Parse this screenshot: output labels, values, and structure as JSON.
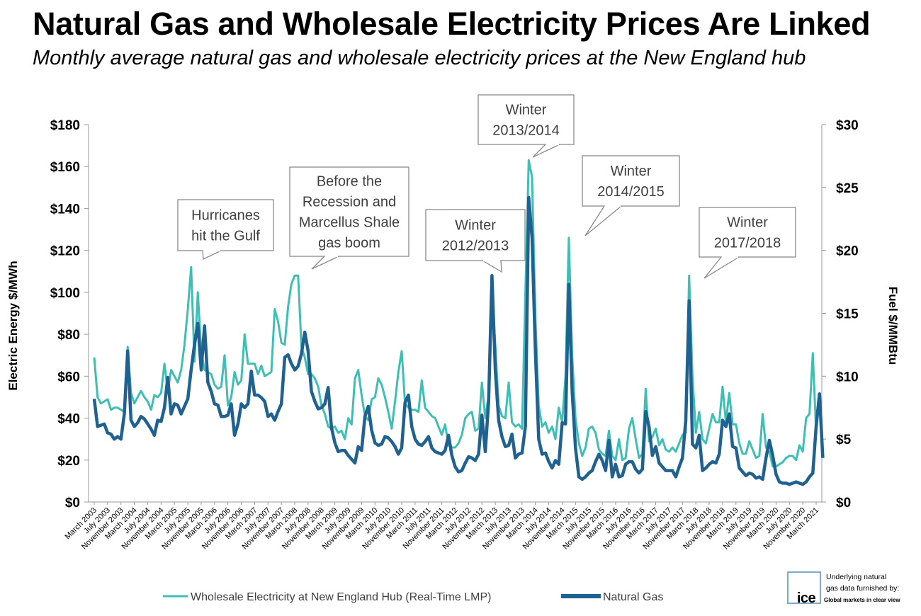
{
  "title": "Natural Gas and Wholesale Electricity Prices Are Linked",
  "subtitle": "Monthly average natural gas and wholesale electricity prices at the New England hub",
  "colors": {
    "electricity": "#3dbfb4",
    "gas": "#1f6291",
    "axis": "#999999"
  },
  "chart_data": {
    "type": "line",
    "ylabel": "Electric  Energy $/MWh",
    "y2label": "Fuel $/MMBtu",
    "ylim": [
      0,
      180
    ],
    "y2lim": [
      0,
      30
    ],
    "yticks": [
      "$0",
      "$20",
      "$40",
      "$60",
      "$80",
      "$100",
      "$120",
      "$140",
      "$160",
      "$180"
    ],
    "y2ticks": [
      "$0",
      "$5",
      "$10",
      "$15",
      "$20",
      "$25",
      "$30"
    ],
    "x_start": "March 2003",
    "x_end": "March 2021",
    "x_tick_labels": [
      "March 2003",
      "July 2003",
      "November 2003",
      "March 2004",
      "July 2004",
      "November 2004",
      "March 2005",
      "July 2005",
      "November 2005",
      "March 2006",
      "July 2006",
      "November 2006",
      "March 2007",
      "July 2007",
      "November 2007",
      "March 2008",
      "July 2008",
      "November 2008",
      "March 2009",
      "July 2009",
      "November 2009",
      "March 2010",
      "July 2010",
      "November 2010",
      "March 2011",
      "July 2011",
      "November 2011",
      "March 2012",
      "July 2012",
      "November 2012",
      "March 2013",
      "July 2013",
      "November 2013",
      "March 2014",
      "July 2014",
      "November 2014",
      "March 2015",
      "July 2015",
      "November 2015",
      "March 2016",
      "July 2016",
      "November 2016",
      "March 2017",
      "July 2017",
      "November 2017",
      "March 2018",
      "July 2018",
      "November 2018",
      "March 2019",
      "July 2019",
      "November 2019",
      "March 2020",
      "July 2020",
      "November 2020",
      "March 2021"
    ],
    "series": [
      {
        "name": "Wholesale Electricity at New England Hub (Real-Time LMP)",
        "axis": "left",
        "values": [
          69,
          50,
          47,
          48,
          49,
          44,
          45,
          45,
          44,
          43,
          74,
          52,
          47,
          50,
          53,
          50,
          48,
          44,
          51,
          50,
          52,
          66,
          53,
          63,
          60,
          57,
          63,
          75,
          92,
          112,
          67,
          100,
          72,
          63,
          62,
          61,
          56,
          54,
          55,
          70,
          46,
          50,
          62,
          56,
          58,
          80,
          66,
          66,
          66,
          61,
          65,
          60,
          61,
          62,
          92,
          86,
          76,
          75,
          93,
          104,
          108,
          108,
          74,
          69,
          61,
          61,
          59,
          55,
          46,
          42,
          36,
          35,
          36,
          33,
          34,
          30,
          40,
          37,
          59,
          63,
          51,
          41,
          39,
          49,
          50,
          59,
          56,
          50,
          43,
          35,
          48,
          62,
          72,
          47,
          45,
          44,
          44,
          43,
          58,
          45,
          43,
          41,
          40,
          36,
          32,
          37,
          27,
          26,
          26,
          28,
          32,
          40,
          42,
          43,
          34,
          35,
          57,
          40,
          51,
          100,
          75,
          46,
          41,
          40,
          57,
          38,
          36,
          37,
          35,
          100,
          163,
          155,
          88,
          46,
          36,
          38,
          33,
          36,
          30,
          45,
          38,
          60,
          126,
          70,
          40,
          28,
          22,
          26,
          35,
          36,
          33,
          25,
          23,
          22,
          34,
          22,
          20,
          30,
          20,
          21,
          35,
          40,
          30,
          21,
          23,
          54,
          29,
          31,
          35,
          27,
          30,
          25,
          24,
          26,
          24,
          28,
          32,
          33,
          108,
          60,
          33,
          43,
          30,
          28,
          35,
          42,
          38,
          38,
          55,
          38,
          52,
          37,
          37,
          28,
          23,
          23,
          29,
          25,
          21,
          22,
          42,
          26,
          24,
          17,
          17,
          18,
          19,
          21,
          22,
          22,
          20,
          27,
          24,
          40,
          42,
          71,
          33
        ]
      },
      {
        "name": "Natural Gas",
        "axis": "right",
        "values": [
          8.2,
          6.0,
          6.1,
          6.2,
          5.5,
          5.4,
          5.0,
          5.2,
          5.0,
          7.0,
          12.0,
          6.5,
          6.0,
          6.3,
          6.8,
          6.6,
          6.2,
          5.8,
          5.3,
          6.5,
          6.4,
          7.5,
          9.9,
          7.0,
          7.8,
          7.7,
          7.0,
          7.6,
          8.2,
          10.5,
          12.5,
          14.2,
          10.5,
          14.0,
          9.5,
          8.8,
          7.8,
          7.7,
          6.8,
          6.8,
          6.9,
          7.8,
          5.3,
          6.2,
          7.8,
          7.5,
          7.8,
          10.4,
          8.5,
          8.5,
          8.3,
          8.0,
          6.8,
          7.0,
          6.5,
          7.2,
          7.8,
          11.5,
          11.7,
          11.0,
          10.5,
          10.8,
          11.8,
          13.5,
          12.0,
          8.8,
          8.0,
          7.4,
          7.5,
          7.8,
          9.1,
          5.9,
          4.7,
          4.0,
          4.1,
          4.1,
          3.7,
          3.4,
          3.1,
          4.4,
          4.1,
          6.8,
          7.6,
          5.7,
          4.7,
          4.5,
          4.6,
          5.2,
          5.1,
          4.8,
          4.4,
          3.8,
          4.3,
          7.9,
          8.5,
          6.0,
          5.0,
          4.6,
          4.5,
          4.8,
          5.2,
          4.3,
          4.0,
          3.9,
          3.8,
          4.1,
          5.3,
          3.7,
          2.8,
          2.4,
          2.5,
          3.1,
          3.6,
          3.5,
          3.3,
          3.8,
          6.9,
          4.0,
          8.0,
          18.0,
          10.5,
          6.5,
          5.2,
          4.4,
          4.5,
          5.4,
          3.5,
          3.8,
          3.9,
          6.0,
          24.2,
          21.0,
          12.0,
          5.0,
          3.8,
          3.9,
          3.2,
          2.7,
          3.3,
          3.0,
          6.3,
          6.2,
          17.3,
          8.8,
          4.3,
          2.0,
          1.8,
          2.0,
          2.3,
          2.5,
          3.2,
          3.8,
          3.3,
          2.5,
          4.9,
          2.0,
          3.0,
          2.0,
          2.1,
          3.0,
          3.2,
          3.2,
          2.6,
          2.3,
          2.6,
          7.2,
          6.0,
          3.7,
          4.4,
          3.1,
          2.8,
          2.5,
          2.5,
          2.5,
          2.0,
          2.8,
          3.5,
          6.5,
          16.0,
          4.6,
          4.3,
          5.3,
          2.5,
          2.7,
          3.0,
          3.2,
          3.1,
          3.8,
          6.5,
          6.0,
          7.0,
          4.4,
          4.3,
          2.7,
          2.4,
          2.1,
          2.3,
          2.2,
          1.9,
          2.0,
          1.8,
          3.5,
          4.9,
          3.7,
          2.2,
          1.6,
          1.5,
          1.5,
          1.4,
          1.5,
          1.6,
          1.5,
          1.4,
          1.6,
          2.0,
          2.3,
          6.0,
          8.6,
          3.5
        ]
      }
    ],
    "annotations": [
      {
        "lines": [
          "Hurricanes",
          "hit the Gulf"
        ]
      },
      {
        "lines": [
          "Before the",
          "Recession and",
          "Marcellus Shale",
          "gas boom"
        ]
      },
      {
        "lines": [
          "Winter",
          "2012/2013"
        ]
      },
      {
        "lines": [
          "Winter",
          "2013/2014"
        ]
      },
      {
        "lines": [
          "Winter",
          "2014/2015"
        ]
      },
      {
        "lines": [
          "Winter",
          "2017/2018"
        ]
      }
    ],
    "legend_position": "bottom"
  },
  "source_note": {
    "caption_lines": [
      "Underlying natural",
      "gas data furnished by:"
    ],
    "logo_text": "ICE",
    "tagline": "Global markets in clear view"
  }
}
